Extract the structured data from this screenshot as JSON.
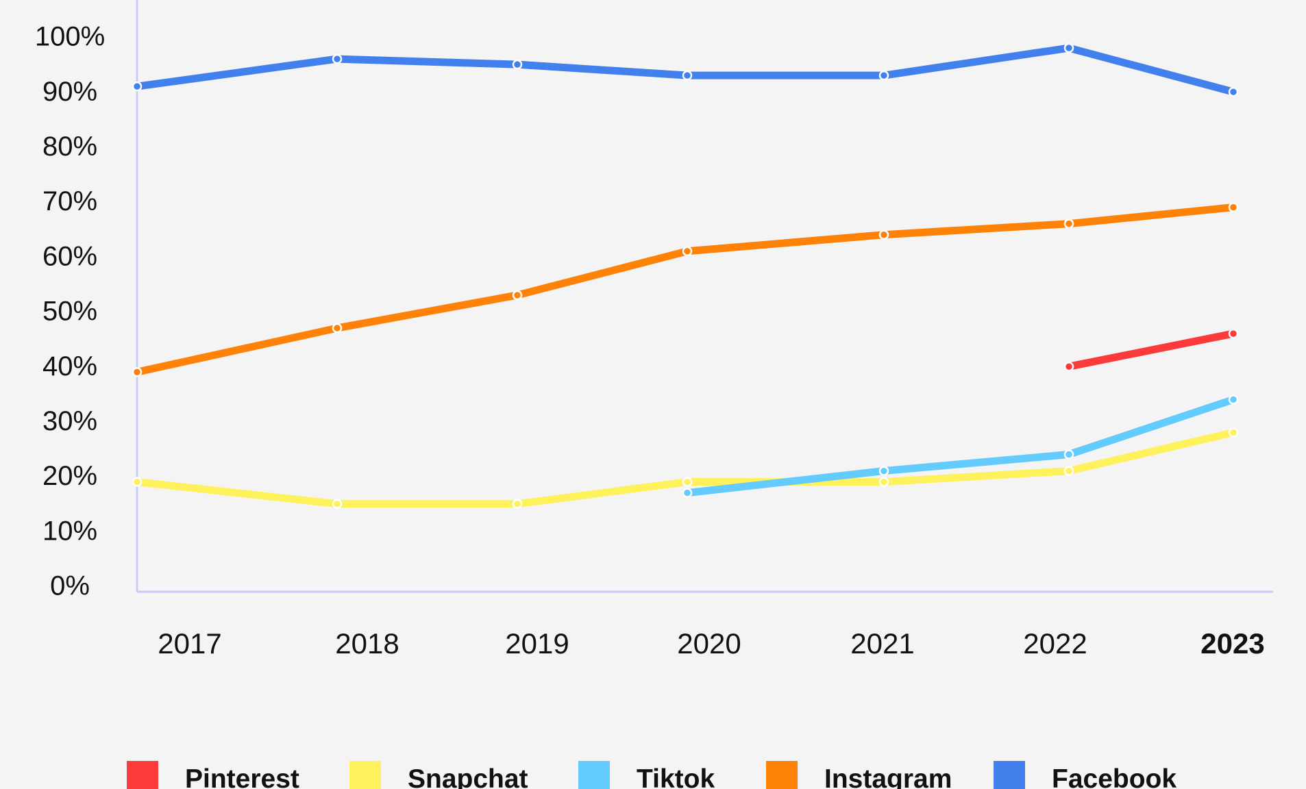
{
  "chart_data": {
    "type": "line",
    "title": "",
    "xlabel": "",
    "ylabel": "",
    "x": [
      "2017",
      "2018",
      "2019",
      "2020",
      "2021",
      "2022",
      "2023"
    ],
    "highlight_category": "2023",
    "highlight_color": "#ff8208",
    "y_ticks": [
      "0%",
      "10%",
      "20%",
      "30%",
      "40%",
      "50%",
      "60%",
      "70%",
      "80%",
      "90%",
      "100%"
    ],
    "ylim": [
      0,
      100
    ],
    "grid": false,
    "legend_position": "bottom",
    "axis_color": "#c8cbf5",
    "series": [
      {
        "name": "Pinterest",
        "color": "#fc3a3b",
        "values": [
          null,
          null,
          null,
          null,
          null,
          40,
          46
        ]
      },
      {
        "name": "Snapchat",
        "color": "#fff15b",
        "values": [
          19,
          15,
          15,
          19,
          19,
          21,
          28
        ]
      },
      {
        "name": "Tiktok",
        "color": "#63cbfd",
        "values": [
          null,
          null,
          null,
          17,
          21,
          24,
          34
        ]
      },
      {
        "name": "Instagram",
        "color": "#ff8208",
        "values": [
          39,
          47,
          53,
          61,
          64,
          66,
          69
        ]
      },
      {
        "name": "Facebook",
        "color": "#4280ee",
        "values": [
          91,
          96,
          95,
          93,
          93,
          98,
          90
        ]
      }
    ]
  }
}
